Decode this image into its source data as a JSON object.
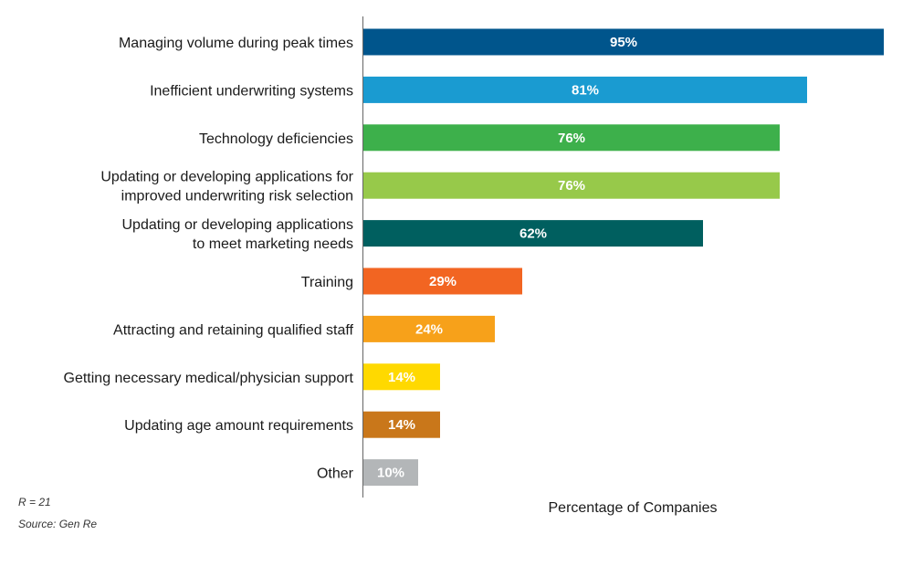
{
  "chart_data": {
    "type": "bar",
    "orientation": "horizontal",
    "categories": [
      "Managing volume during peak times",
      "Inefficient underwriting systems",
      "Technology deficiencies",
      "Updating or developing applications for\nimproved underwriting risk selection",
      "Updating or developing applications\nto meet marketing needs",
      "Training",
      "Attracting and retaining qualified staff",
      "Getting necessary medical/physician support",
      "Updating age amount requirements",
      "Other"
    ],
    "values": [
      95,
      81,
      76,
      76,
      62,
      29,
      24,
      14,
      14,
      10
    ],
    "value_labels": [
      "95%",
      "81%",
      "76%",
      "76%",
      "62%",
      "29%",
      "24%",
      "14%",
      "14%",
      "10%"
    ],
    "colors": [
      "#00558c",
      "#1a9bd1",
      "#3db04b",
      "#97c94a",
      "#005f5f",
      "#f26522",
      "#f7a11a",
      "#ffd900",
      "#c9771a",
      "#b3b6b8"
    ],
    "xlabel": "Percentage of Companies",
    "xlim": [
      0,
      95
    ],
    "grid": false,
    "legend": "none"
  },
  "notes": {
    "r": "R = 21",
    "source": "Source: Gen Re"
  }
}
